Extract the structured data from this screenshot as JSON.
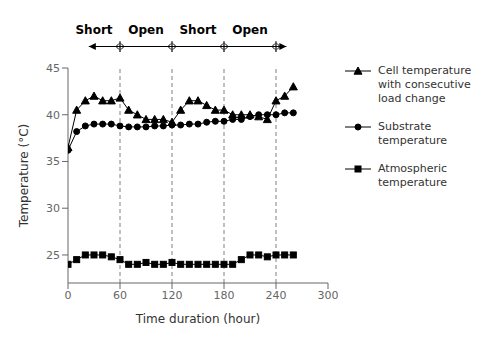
{
  "chart_data": {
    "type": "line",
    "x": [
      0,
      10,
      20,
      30,
      40,
      50,
      60,
      70,
      80,
      90,
      100,
      110,
      120,
      130,
      140,
      150,
      160,
      170,
      180,
      190,
      200,
      210,
      220,
      230,
      240,
      250,
      260
    ],
    "series": [
      {
        "name": "Cell temperature\nwith consecutive\nload change",
        "color": "#000000",
        "marker": "triangle",
        "values": [
          36.5,
          40.5,
          41.5,
          42.0,
          41.5,
          41.5,
          41.8,
          40.5,
          40.0,
          39.5,
          39.5,
          39.5,
          39.2,
          40.5,
          41.5,
          41.5,
          41.0,
          40.5,
          40.5,
          40.0,
          40.0,
          40.0,
          39.8,
          39.5,
          41.5,
          42.0,
          43.0
        ]
      },
      {
        "name": "Substrate\ntemperature",
        "color": "#000000",
        "marker": "circle",
        "values": [
          36.2,
          38.2,
          38.8,
          39.0,
          39.0,
          39.0,
          38.8,
          38.7,
          38.7,
          38.7,
          38.8,
          38.8,
          38.9,
          38.9,
          39.0,
          39.0,
          39.2,
          39.3,
          39.3,
          39.5,
          39.5,
          39.8,
          40.0,
          40.0,
          40.0,
          40.2,
          40.2
        ]
      },
      {
        "name": "Atmospheric\ntemperature",
        "color": "#000000",
        "marker": "square",
        "values": [
          24.0,
          24.5,
          25.0,
          25.0,
          25.0,
          24.8,
          24.5,
          24.0,
          24.0,
          24.2,
          24.0,
          24.0,
          24.2,
          24.0,
          24.0,
          24.0,
          24.0,
          24.0,
          24.0,
          24.0,
          24.5,
          25.0,
          25.0,
          24.8,
          25.0,
          25.0,
          25.0
        ]
      }
    ],
    "xlabel": "Time duration (hour)",
    "ylabel": "Temperature (°C)",
    "xlim": [
      0,
      300
    ],
    "ylim": [
      22,
      45
    ],
    "xticks": [
      0,
      60,
      120,
      180,
      240,
      300
    ],
    "yticks": [
      25,
      30,
      35,
      40,
      45
    ],
    "vlines": [
      60,
      120,
      180,
      240
    ],
    "annotations": [
      {
        "text": "Short",
        "x": 30
      },
      {
        "text": "Open",
        "x": 90
      },
      {
        "text": "Short",
        "x": 150
      },
      {
        "text": "Open",
        "x": 210
      }
    ],
    "arrow": [
      24,
      252
    ],
    "grid": false
  }
}
